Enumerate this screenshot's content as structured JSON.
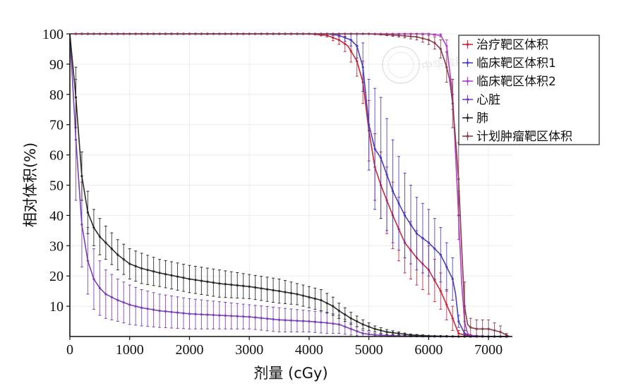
{
  "chart_data": {
    "type": "line",
    "title": "",
    "xlabel": "剂量 (cGy)",
    "ylabel": "相对体积(%)",
    "xlim": [
      0,
      7400
    ],
    "ylim": [
      0,
      100
    ],
    "xticks": [
      0,
      1000,
      2000,
      3000,
      4000,
      5000,
      6000,
      7000
    ],
    "yticks": [
      10,
      20,
      30,
      40,
      50,
      60,
      70,
      80,
      90,
      100
    ],
    "xtick_labels": [
      "0",
      "1000",
      "2000",
      "3000",
      "4000",
      "5000",
      "6000",
      "7000"
    ],
    "ytick_labels": [
      "10",
      "20",
      "30",
      "40",
      "50",
      "60",
      "70",
      "80",
      "90",
      "100"
    ],
    "grid": true,
    "legend_position": "top-right",
    "error_bars": true,
    "series": [
      {
        "name": "治疗靶区体积",
        "color": "#c8283c",
        "x": [
          0,
          4000,
          4300,
          4500,
          4650,
          4800,
          4900,
          5000,
          5100,
          5200,
          5400,
          5600,
          5800,
          6000,
          6200,
          6400,
          6500,
          6600,
          6700,
          6800,
          7000,
          7200,
          7350
        ],
        "y": [
          100,
          100,
          99.5,
          98,
          96,
          91,
          84,
          68,
          56,
          50,
          40,
          31,
          26,
          22,
          15,
          6,
          1,
          0.5,
          0.3,
          0.1,
          0,
          0,
          0
        ],
        "err": [
          0,
          0,
          0.5,
          1.5,
          3,
          5,
          7,
          10,
          11,
          11,
          11,
          10,
          9,
          8,
          6,
          4,
          1,
          0.5,
          0.3,
          0,
          0,
          0,
          0
        ]
      },
      {
        "name": "临床靶区体积1",
        "color": "#4a3fbf",
        "x": [
          0,
          4300,
          4500,
          4700,
          4800,
          4900,
          5000,
          5100,
          5200,
          5400,
          5600,
          5800,
          6000,
          6200,
          6400,
          6450,
          6500,
          6600,
          6700,
          7000,
          7350
        ],
        "y": [
          100,
          100,
          99.5,
          98,
          96,
          89,
          70,
          62,
          59,
          48,
          40,
          34,
          31,
          27,
          19,
          14,
          5,
          1,
          0.3,
          0,
          0
        ],
        "err": [
          0,
          0,
          0.5,
          2,
          4,
          8,
          15,
          20,
          20,
          17,
          14,
          12,
          11,
          9,
          7,
          5,
          2,
          1,
          0.3,
          0,
          0
        ]
      },
      {
        "name": "临床靶区体积2",
        "color": "#b040c8",
        "x": [
          0,
          5000,
          6000,
          6200,
          6300,
          6400,
          6450,
          6500,
          6550,
          6600,
          6650,
          6700,
          7000,
          7350
        ],
        "y": [
          100,
          100,
          100,
          99.5,
          96,
          80,
          60,
          40,
          18,
          5,
          1,
          0.3,
          0,
          0
        ],
        "err": [
          0,
          0,
          0,
          0.5,
          2,
          5,
          6,
          8,
          6,
          3,
          1,
          0.3,
          0,
          0
        ]
      },
      {
        "name": "心脏",
        "color": "#7b3fb5",
        "x": [
          0,
          100,
          200,
          300,
          400,
          500,
          600,
          800,
          1000,
          1200,
          1500,
          2000,
          2500,
          3000,
          3500,
          4000,
          4300,
          4500,
          4700,
          4900,
          5100,
          5500,
          6000,
          6500,
          7000,
          7350
        ],
        "y": [
          100,
          65,
          37,
          25,
          19,
          16,
          14,
          12,
          10.5,
          9.5,
          8.5,
          7.5,
          7,
          6.5,
          5.5,
          5,
          4.5,
          4,
          2.5,
          1,
          0.5,
          0.2,
          0,
          0,
          0,
          0
        ],
        "err": [
          0,
          20,
          14,
          11,
          10,
          9,
          8,
          7,
          6.5,
          6,
          5.5,
          5,
          4.5,
          4,
          4,
          3.5,
          3.5,
          3,
          2,
          1,
          0.5,
          0.2,
          0,
          0,
          0,
          0
        ]
      },
      {
        "name": "肺",
        "color": "#2a2a2a",
        "x": [
          0,
          100,
          200,
          300,
          400,
          500,
          600,
          800,
          1000,
          1200,
          1500,
          2000,
          2500,
          3000,
          3500,
          3800,
          4000,
          4200,
          4400,
          4500,
          4700,
          4900,
          5100,
          5300,
          5500,
          5700,
          6000,
          6500,
          7000,
          7350
        ],
        "y": [
          100,
          79,
          53,
          41,
          36,
          33,
          31,
          27,
          24,
          22.5,
          21,
          19,
          17.5,
          16.5,
          15,
          14,
          13,
          12,
          10,
          8.5,
          6,
          4,
          2.5,
          1.5,
          1,
          0.5,
          0.2,
          0,
          0,
          0
        ],
        "err": [
          0,
          10,
          8,
          7,
          6,
          6,
          5.5,
          5,
          5,
          5,
          4.5,
          4.5,
          4.5,
          4,
          4,
          3.5,
          3.5,
          3.5,
          3,
          2.5,
          2,
          1.5,
          1,
          0.8,
          0.5,
          0.3,
          0.2,
          0,
          0,
          0
        ]
      },
      {
        "name": "计划肿瘤靶区体积",
        "color": "#8a3a4a",
        "x": [
          0,
          5000,
          5500,
          5800,
          6000,
          6100,
          6200,
          6300,
          6350,
          6400,
          6450,
          6500,
          6550,
          6600,
          6650,
          6700,
          6800,
          6900,
          7000,
          7100,
          7200,
          7300,
          7350
        ],
        "y": [
          100,
          100,
          99.5,
          99,
          98,
          97,
          95,
          89,
          85,
          77,
          65,
          52,
          30,
          10,
          4,
          3,
          2.5,
          2.5,
          2.5,
          2,
          1.5,
          0.5,
          0
        ],
        "err": [
          0,
          0,
          0.5,
          1,
          1.5,
          2,
          3,
          5,
          6,
          8,
          10,
          12,
          15,
          8,
          4,
          3,
          3,
          3,
          3,
          2.5,
          2,
          0.5,
          0
        ]
      }
    ]
  },
  "watermark": {
    "text": "中华放射肿瘤学杂志"
  }
}
